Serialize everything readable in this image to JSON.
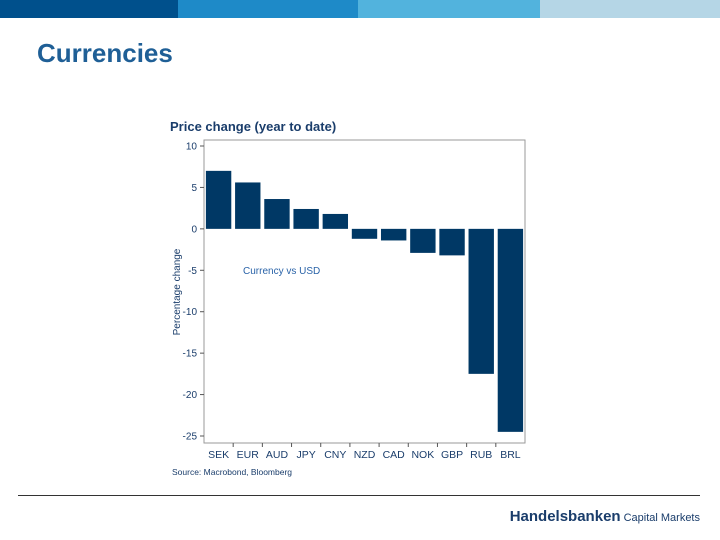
{
  "header": {
    "title": "Currencies",
    "band_colors": [
      "#00508c",
      "#1e8ac8",
      "#52b3dd",
      "#b5d6e6"
    ]
  },
  "footer": {
    "brand_name": "Handelsbanken",
    "brand_suffix": "Capital Markets"
  },
  "chart_data": {
    "type": "bar",
    "title": "Price change (year to date)",
    "ylabel": "Percentage change",
    "xlabel": "",
    "annotation": "Currency vs USD",
    "source": "Source: Macrobond, Bloomberg",
    "categories": [
      "SEK",
      "EUR",
      "AUD",
      "JPY",
      "CNY",
      "NZD",
      "CAD",
      "NOK",
      "GBP",
      "RUB",
      "BRL"
    ],
    "values": [
      7.0,
      5.6,
      3.6,
      2.4,
      1.8,
      -1.2,
      -1.4,
      -2.9,
      -3.2,
      -17.5,
      -24.5
    ],
    "ylim": [
      -25,
      10
    ],
    "yticks": [
      10,
      5,
      0,
      -5,
      -10,
      -15,
      -20,
      -25
    ],
    "bar_color": "#003865"
  }
}
